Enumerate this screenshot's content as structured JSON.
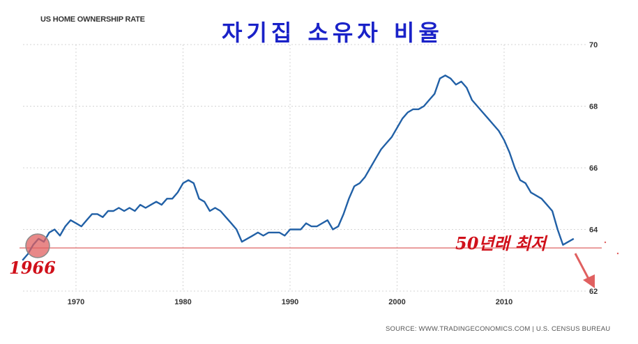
{
  "header": {
    "chart_title": "US HOME OWNERSHIP RATE",
    "korean_title": "자기집 소유자 비율"
  },
  "annotations": {
    "year_1966": "1966",
    "low_50yr": "50년래 최저"
  },
  "footer": {
    "source": "SOURCE: WWW.TRADINGECONOMICS.COM | U.S. CENSUS BUREAU"
  },
  "colors": {
    "line": "#2160a6",
    "grid": "#d3d3d3",
    "reference_line": "#e07070",
    "annotation": "#d0101a",
    "korean_title": "#1a22c8",
    "circle": "#e06060"
  },
  "chart_data": {
    "type": "line",
    "title": "US HOME OWNERSHIP RATE",
    "xlabel": "",
    "ylabel": "",
    "xlim": [
      1965,
      2017
    ],
    "ylim": [
      62,
      70
    ],
    "x_ticks": [
      1970,
      1980,
      1990,
      2000,
      2010
    ],
    "y_ticks": [
      62,
      64,
      66,
      68,
      70
    ],
    "y_axis_position": "right",
    "grid": true,
    "reference_line_y": 63.4,
    "series": [
      {
        "x": [
          1965.0,
          1965.5,
          1966.0,
          1966.5,
          1967.0,
          1967.5,
          1968.0,
          1968.5,
          1969.0,
          1969.5,
          1970.0,
          1970.5,
          1971.0,
          1971.5,
          1972.0,
          1972.5,
          1973.0,
          1973.5,
          1974.0,
          1974.5,
          1975.0,
          1975.5,
          1976.0,
          1976.5,
          1977.0,
          1977.5,
          1978.0,
          1978.5,
          1979.0,
          1979.5,
          1980.0,
          1980.5,
          1981.0,
          1981.5,
          1982.0,
          1982.5,
          1983.0,
          1983.5,
          1984.0,
          1984.5,
          1985.0,
          1985.5,
          1986.0,
          1986.5,
          1987.0,
          1987.5,
          1988.0,
          1988.5,
          1989.0,
          1989.5,
          1990.0,
          1990.5,
          1991.0,
          1991.5,
          1992.0,
          1992.5,
          1993.0,
          1993.5,
          1994.0,
          1994.5,
          1995.0,
          1995.5,
          1996.0,
          1996.5,
          1997.0,
          1997.5,
          1998.0,
          1998.5,
          1999.0,
          1999.5,
          2000.0,
          2000.5,
          2001.0,
          2001.5,
          2002.0,
          2002.5,
          2003.0,
          2003.5,
          2004.0,
          2004.5,
          2005.0,
          2005.5,
          2006.0,
          2006.5,
          2007.0,
          2007.5,
          2008.0,
          2008.5,
          2009.0,
          2009.5,
          2010.0,
          2010.5,
          2011.0,
          2011.5,
          2012.0,
          2012.5,
          2013.0,
          2013.5,
          2014.0,
          2014.5,
          2015.0,
          2015.5,
          2016.0,
          2016.5
        ],
        "y": [
          63.0,
          63.2,
          63.5,
          63.7,
          63.6,
          63.9,
          64.0,
          63.8,
          64.1,
          64.3,
          64.2,
          64.1,
          64.3,
          64.5,
          64.5,
          64.4,
          64.6,
          64.6,
          64.7,
          64.6,
          64.7,
          64.6,
          64.8,
          64.7,
          64.8,
          64.9,
          64.8,
          65.0,
          65.0,
          65.2,
          65.5,
          65.6,
          65.5,
          65.0,
          64.9,
          64.6,
          64.7,
          64.6,
          64.4,
          64.2,
          64.0,
          63.6,
          63.7,
          63.8,
          63.9,
          63.8,
          63.9,
          63.9,
          63.9,
          63.8,
          64.0,
          64.0,
          64.0,
          64.2,
          64.1,
          64.1,
          64.2,
          64.3,
          64.0,
          64.1,
          64.5,
          65.0,
          65.4,
          65.5,
          65.7,
          66.0,
          66.3,
          66.6,
          66.8,
          67.0,
          67.3,
          67.6,
          67.8,
          67.9,
          67.9,
          68.0,
          68.2,
          68.4,
          68.9,
          69.0,
          68.9,
          68.7,
          68.8,
          68.6,
          68.2,
          68.0,
          67.8,
          67.6,
          67.4,
          67.2,
          66.9,
          66.5,
          66.0,
          65.6,
          65.5,
          65.2,
          65.1,
          65.0,
          64.8,
          64.6,
          64.0,
          63.5,
          63.6,
          63.7
        ]
      }
    ]
  }
}
